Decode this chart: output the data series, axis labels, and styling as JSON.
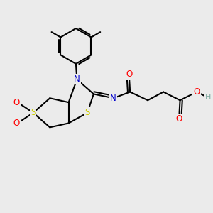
{
  "bg_color": "#ebebeb",
  "atom_colors": {
    "C": "#000000",
    "N": "#0000cc",
    "S": "#cccc00",
    "O": "#ff0000",
    "H": "#7faaa0"
  },
  "bond_color": "#000000"
}
